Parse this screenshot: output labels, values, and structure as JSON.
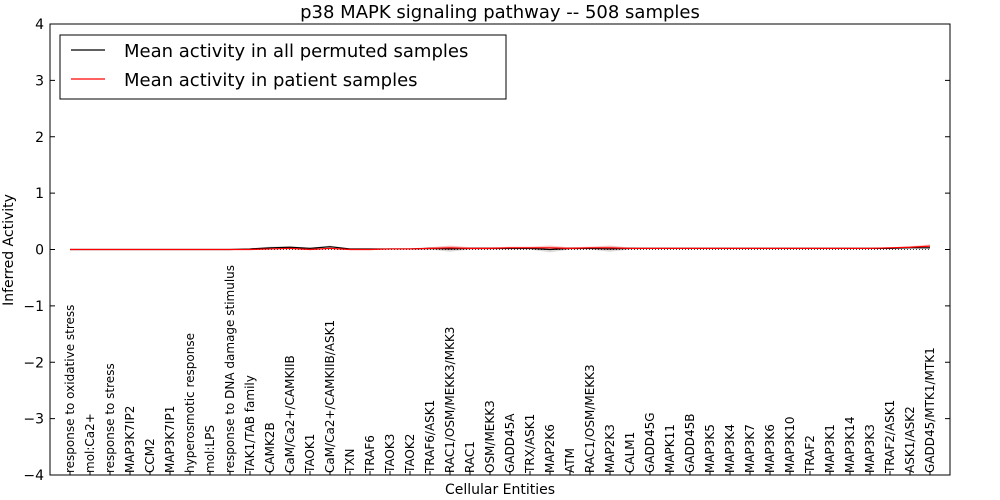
{
  "chart_data": {
    "type": "line",
    "title": "p38 MAPK signaling pathway -- 508 samples",
    "xlabel": "Cellular Entities",
    "ylabel": "Inferred Activity",
    "ylim": [
      -4,
      4
    ],
    "yticks": [
      "4",
      "3",
      "2",
      "1",
      "0",
      "−1",
      "−2",
      "−3",
      "−4"
    ],
    "ytick_values": [
      4,
      3,
      2,
      1,
      0,
      -1,
      -2,
      -3,
      -4
    ],
    "grid": false,
    "legend_position": "top-left",
    "categories": [
      "response to oxidative stress",
      "mol:Ca2+",
      "response to stress",
      "MAP3K7IP2",
      "CCM2",
      "MAP3K7IP1",
      "hyperosmotic response",
      "mol:LPS",
      "response to DNA damage stimulus",
      "TAK1/TAB family",
      "CAMK2B",
      "CaM/Ca2+/CAMKIIB",
      "TAOK1",
      "CaM/Ca2+/CAMKIIB/ASK1",
      "TXN",
      "TRAF6",
      "TAOK3",
      "TAOK2",
      "TRAF6/ASK1",
      "RAC1/OSM/MEKK3/MKK3",
      "RAC1",
      "OSM/MEKK3",
      "GADD45A",
      "TRX/ASK1",
      "MAP2K6",
      "ATM",
      "RAC1/OSM/MEKK3",
      "MAP2K3",
      "CALM1",
      "GADD45G",
      "MAPK11",
      "GADD45B",
      "MAP3K5",
      "MAP3K4",
      "MAP3K7",
      "MAP3K6",
      "MAP3K10",
      "TRAF2",
      "MAP3K1",
      "MAP3K14",
      "MAP3K3",
      "TRAF2/ASK1",
      "ASK1/ASK2",
      "GADD45/MTK1/MTK1"
    ],
    "series": [
      {
        "name": "Mean activity in all permuted samples",
        "color": "#000000",
        "band_color": "#bbbbbb",
        "values": [
          0,
          0,
          0,
          0,
          0,
          0,
          0,
          0,
          0,
          0.01,
          0.03,
          0.04,
          0.02,
          0.05,
          0.01,
          0.01,
          0.01,
          0.01,
          0.02,
          0.01,
          0.02,
          0.02,
          0.02,
          0.02,
          0,
          0.02,
          0.02,
          0.01,
          0.02,
          0.02,
          0.02,
          0.02,
          0.02,
          0.02,
          0.02,
          0.02,
          0.02,
          0.02,
          0.02,
          0.02,
          0.02,
          0.02,
          0.03,
          0.03
        ],
        "spread": [
          0,
          0,
          0,
          0,
          0,
          0,
          0,
          0,
          0,
          0.01,
          0.02,
          0.02,
          0.01,
          0.02,
          0.01,
          0.01,
          0.01,
          0.01,
          0.02,
          0.05,
          0.02,
          0.02,
          0.02,
          0.02,
          0.05,
          0.02,
          0.02,
          0.05,
          0.02,
          0.01,
          0.01,
          0.01,
          0.01,
          0.01,
          0.01,
          0.01,
          0.01,
          0.01,
          0.01,
          0.01,
          0.01,
          0.01,
          0.01,
          0.02
        ]
      },
      {
        "name": "Mean activity in patient samples",
        "color": "#ff0000",
        "band_color": "#ff9999",
        "values": [
          0,
          0,
          0,
          0,
          0,
          0,
          0,
          0,
          0,
          0,
          0.01,
          0.02,
          0,
          0.02,
          0,
          0,
          0.01,
          0.01,
          0.02,
          0.03,
          0.02,
          0.02,
          0.03,
          0.03,
          0.03,
          0.02,
          0.03,
          0.03,
          0.02,
          0.02,
          0.02,
          0.02,
          0.02,
          0.02,
          0.02,
          0.02,
          0.02,
          0.02,
          0.02,
          0.02,
          0.02,
          0.03,
          0.04,
          0.06
        ],
        "spread": [
          0,
          0,
          0,
          0,
          0,
          0,
          0,
          0,
          0,
          0.01,
          0.01,
          0.01,
          0.01,
          0.01,
          0.01,
          0.01,
          0.01,
          0.01,
          0.02,
          0.04,
          0.02,
          0.02,
          0.02,
          0.02,
          0.04,
          0.02,
          0.02,
          0.04,
          0.01,
          0.01,
          0.01,
          0.01,
          0.01,
          0.01,
          0.01,
          0.01,
          0.01,
          0.01,
          0.01,
          0.01,
          0.01,
          0.01,
          0.02,
          0.03
        ]
      }
    ]
  }
}
